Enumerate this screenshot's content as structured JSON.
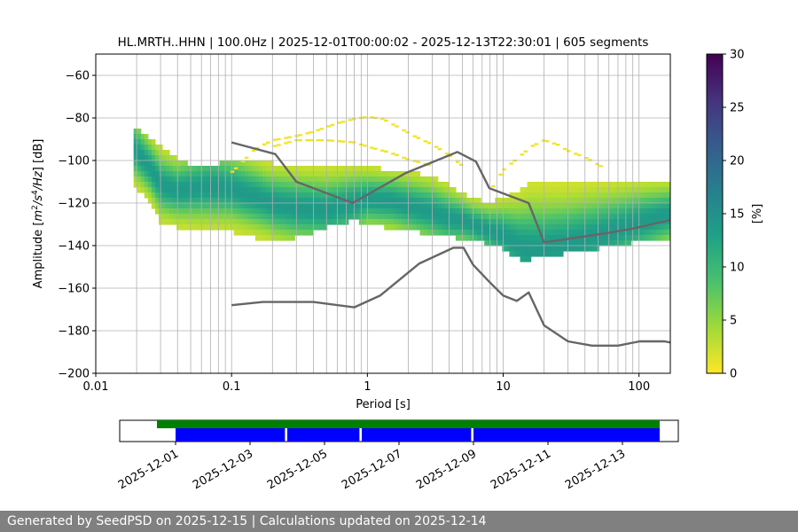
{
  "chart_data": {
    "type": "heatmap",
    "title": "HL.MRTH..HHN | 100.0Hz | 2025-12-01T00:00:02 - 2025-12-13T22:30:01 | 605 segments",
    "xlabel": "Period [s]",
    "ylabel_parts": [
      "Amplitude [",
      "m",
      "2",
      "/",
      "s",
      "4",
      "/",
      "Hz",
      "] [dB]"
    ],
    "x_scale": "log",
    "xlim": [
      0.01,
      170
    ],
    "ylim": [
      -200,
      -50
    ],
    "x_ticks": [
      {
        "value": 0.01,
        "label": "0.01"
      },
      {
        "value": 0.1,
        "label": "0.1"
      },
      {
        "value": 1,
        "label": "1"
      },
      {
        "value": 10,
        "label": "10"
      },
      {
        "value": 100,
        "label": "100"
      }
    ],
    "y_ticks": [
      {
        "value": -60,
        "label": "−60"
      },
      {
        "value": -80,
        "label": "−80"
      },
      {
        "value": -100,
        "label": "−100"
      },
      {
        "value": -120,
        "label": "−120"
      },
      {
        "value": -140,
        "label": "−140"
      },
      {
        "value": -160,
        "label": "−160"
      },
      {
        "value": -180,
        "label": "−180"
      },
      {
        "value": -200,
        "label": "−200"
      }
    ],
    "grid_periods": [
      0.02,
      0.03,
      0.04,
      0.05,
      0.06,
      0.07,
      0.08,
      0.09,
      0.1,
      0.2,
      0.3,
      0.4,
      0.5,
      0.6,
      0.7,
      0.8,
      0.9,
      1,
      2,
      3,
      4,
      5,
      6,
      7,
      8,
      9,
      10,
      20,
      30,
      40,
      50,
      60,
      70,
      80,
      90,
      100
    ],
    "y_grid": [
      -60,
      -80,
      -100,
      -120,
      -140,
      -160,
      -180
    ],
    "colorbar": {
      "label": "[%]",
      "range": [
        0,
        30
      ],
      "ticks": [
        {
          "value": 0,
          "label": "0"
        },
        {
          "value": 5,
          "label": "5"
        },
        {
          "value": 10,
          "label": "10"
        },
        {
          "value": 15,
          "label": "15"
        },
        {
          "value": 20,
          "label": "20"
        },
        {
          "value": 25,
          "label": "25"
        },
        {
          "value": 30,
          "label": "30"
        }
      ],
      "colors": [
        "#fde725",
        "#a0da39",
        "#4ac16d",
        "#1fa187",
        "#277f8e",
        "#365c8d",
        "#46327e",
        "#440154"
      ]
    },
    "density": {
      "x": [
        0.019,
        0.025,
        0.03,
        0.04,
        0.05,
        0.07,
        0.1,
        0.15,
        0.2,
        0.3,
        0.5,
        0.8,
        1.0,
        1.5,
        2,
        3,
        4,
        5,
        6,
        8,
        10,
        13,
        16,
        20,
        30,
        50,
        100,
        170
      ],
      "low": [
        -110,
        -118,
        -128,
        -130,
        -131,
        -132,
        -132,
        -135,
        -137,
        -135,
        -130,
        -127,
        -128,
        -131,
        -132,
        -133,
        -134,
        -136,
        -136,
        -138,
        -140,
        -145,
        -145,
        -144,
        -142,
        -140,
        -137,
        -135
      ],
      "high": [
        -83,
        -88,
        -92,
        -98,
        -101,
        -101,
        -99,
        -100,
        -100,
        -101,
        -102,
        -101,
        -102,
        -103,
        -104,
        -106,
        -110,
        -114,
        -117,
        -118,
        -116,
        -113,
        -109,
        -110,
        -110,
        -109,
        -108,
        -108
      ],
      "mode": [
        -93,
        -102,
        -110,
        -113,
        -112,
        -111,
        -112,
        -116,
        -119,
        -121,
        -122,
        -119,
        -117,
        -118,
        -120,
        -123,
        -126,
        -127,
        -129,
        -132,
        -134,
        -139,
        -141,
        -140,
        -138,
        -134,
        -128,
        -124
      ],
      "outliers": [
        {
          "x": [
            0.1,
            0.15,
            0.2,
            0.3,
            0.4,
            0.6,
            0.8,
            1.0,
            1.3,
            1.7,
            2.2,
            3.0,
            4.0,
            5.0,
            5.5
          ],
          "y": [
            -105,
            -94,
            -90,
            -88,
            -86,
            -82,
            -80,
            -79,
            -80,
            -84,
            -88,
            -92,
            -97,
            -102,
            -105
          ]
        },
        {
          "x": [
            0.2,
            0.3,
            0.5,
            0.8,
            1.0,
            1.5,
            2.0,
            3.0
          ],
          "y": [
            -93,
            -90,
            -90,
            -91,
            -93,
            -96,
            -99,
            -102
          ]
        },
        {
          "x": [
            8,
            10,
            13,
            16,
            20,
            25,
            30,
            40,
            55
          ],
          "y": [
            -114,
            -104,
            -98,
            -93,
            -90,
            -92,
            -95,
            -98,
            -103
          ]
        }
      ]
    },
    "series": [
      {
        "x": [
          0.1,
          0.21,
          0.3,
          0.78,
          1.9,
          4.6,
          6.3,
          7.9,
          15.4,
          20,
          60,
          90,
          170
        ],
        "y": [
          -91.5,
          -97,
          -110,
          -120,
          -106,
          -96,
          -100.5,
          -113,
          -120,
          -138.5,
          -134,
          -132,
          -128
        ],
        "color": "#666666"
      },
      {
        "x": [
          0.1,
          0.17,
          0.4,
          0.8,
          1.24,
          2.4,
          4.3,
          5.1,
          6.0,
          7.9,
          10,
          12.6,
          15.4,
          20,
          30,
          45,
          70,
          101,
          154,
          170
        ],
        "y": [
          -168,
          -166.5,
          -166.5,
          -169,
          -163.5,
          -148.5,
          -141,
          -141,
          -149,
          -157,
          -163.5,
          -166,
          -162,
          -177.5,
          -185,
          -187,
          -187,
          -185,
          -185,
          -185.5
        ],
        "color": "#666666"
      }
    ],
    "legend": "none",
    "grid": true
  },
  "data_availability": {
    "date_labels": [
      "2025-12-01",
      "2025-12-03",
      "2025-12-05",
      "2025-12-07",
      "2025-12-09",
      "2025-12-11",
      "2025-12-13"
    ],
    "date_range": [
      "2025-11-29T12:00",
      "2025-12-14T12:00"
    ],
    "coverage": {
      "start": "2025-11-30T12:00",
      "end": "2025-12-14T00:00",
      "color": "#008000"
    },
    "segments": {
      "color": "#0000ff",
      "ranges": [
        [
          "2025-12-01T00:00",
          "2025-12-03T22:30"
        ],
        [
          "2025-12-04T00:00",
          "2025-12-05T22:30"
        ],
        [
          "2025-12-06T00:00",
          "2025-12-08T22:30"
        ],
        [
          "2025-12-09T00:00",
          "2025-12-14T00:00"
        ]
      ]
    }
  },
  "footer": {
    "text": "Generated by SeedPSD on 2025-12-15 | Calculations updated on 2025-12-14"
  }
}
